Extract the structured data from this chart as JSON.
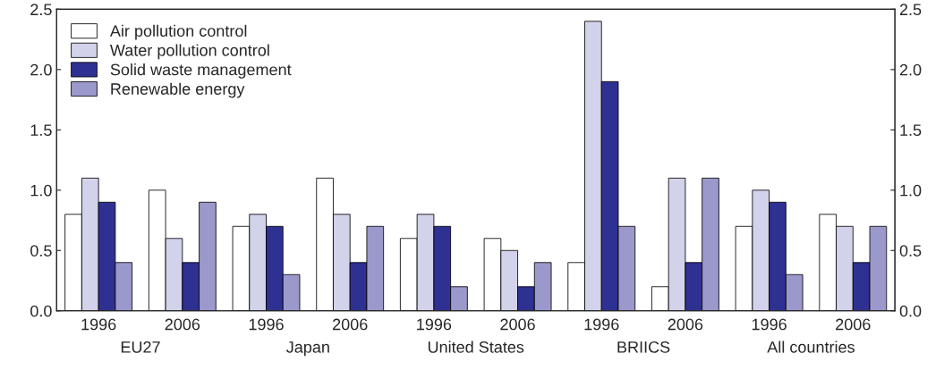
{
  "chart_data": {
    "type": "bar",
    "categories": [
      "1996",
      "2006",
      "1996",
      "2006",
      "1996",
      "2006",
      "1996",
      "2006",
      "1996",
      "2006"
    ],
    "annotations": [
      "EU27",
      "Japan",
      "United States",
      "BRIICS",
      "All countries"
    ],
    "series": [
      {
        "name": "Air pollution control",
        "color": "#ffffff",
        "values": [
          0.8,
          1.0,
          0.7,
          1.1,
          0.6,
          0.6,
          0.4,
          0.2,
          0.7,
          0.8
        ]
      },
      {
        "name": "Water pollution control",
        "color": "#d2d2eb",
        "values": [
          1.1,
          0.6,
          0.8,
          0.8,
          0.8,
          0.5,
          2.4,
          1.1,
          1.0,
          0.7
        ]
      },
      {
        "name": "Solid waste management",
        "color": "#2e3192",
        "values": [
          0.9,
          0.4,
          0.7,
          0.4,
          0.7,
          0.2,
          1.9,
          0.4,
          0.9,
          0.4
        ]
      },
      {
        "name": "Renewable energy",
        "color": "#9b99cc",
        "values": [
          0.4,
          0.9,
          0.3,
          0.7,
          0.2,
          0.4,
          0.7,
          1.1,
          0.3,
          0.7
        ]
      }
    ],
    "ylim": [
      0,
      2.5
    ],
    "yticks": [
      {
        "value": 0,
        "label": "0.0"
      },
      0.5,
      {
        "value": 1,
        "label": "1.0"
      },
      1.5,
      {
        "value": 2,
        "label": "2.0"
      },
      2.5
    ],
    "y2lim": [
      0,
      2.5
    ],
    "y2ticks": [
      {
        "value": 0,
        "label": "0.0"
      },
      0.5,
      {
        "value": 1,
        "label": "1.0"
      },
      1.5,
      {
        "value": 2,
        "label": "2.0"
      },
      2.5
    ],
    "grid": false,
    "legend": "top left"
  }
}
